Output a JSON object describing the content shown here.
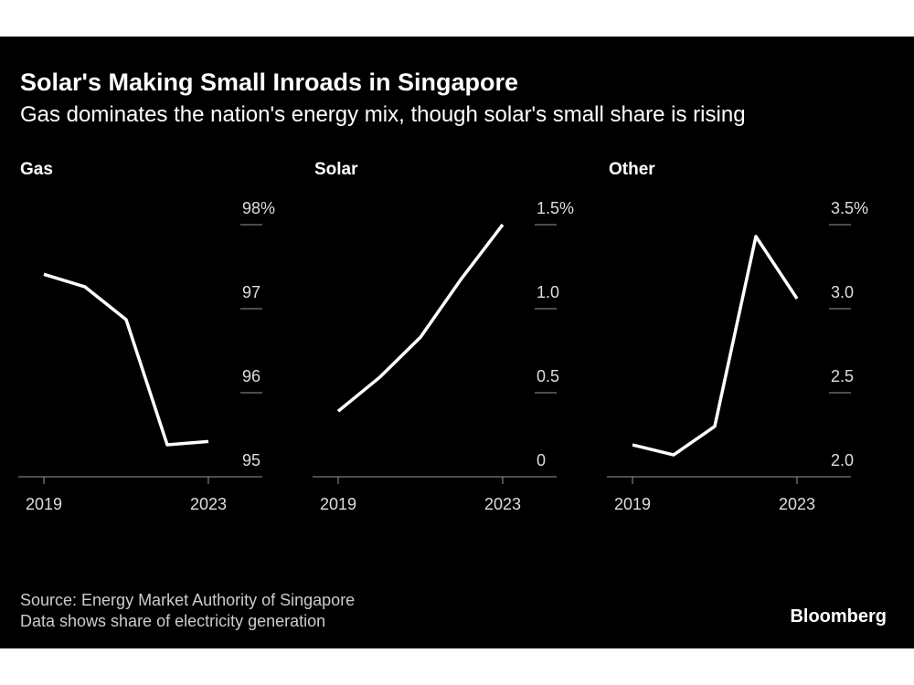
{
  "title": "Solar's Making Small Inroads in Singapore",
  "subtitle": "Gas dominates the nation's energy mix, though solar's small share is rising",
  "source": "Source: Energy Market Authority of Singapore",
  "note": "Data shows share of electricity generation",
  "brand": "Bloomberg",
  "chart_data": [
    {
      "type": "line",
      "title": "Gas",
      "x": [
        2019,
        2020,
        2021,
        2022,
        2023
      ],
      "xlim": [
        2019,
        2023
      ],
      "xticks": [
        2019,
        2023
      ],
      "series": [
        {
          "color": "#ffffff",
          "values": [
            97.41,
            97.26,
            96.87,
            95.38,
            95.42
          ]
        }
      ],
      "ylim": [
        95,
        98
      ],
      "yticks": [
        95,
        96,
        97,
        {
          "value": 98,
          "label": "98%"
        }
      ]
    },
    {
      "type": "line",
      "title": "Solar",
      "x": [
        2019,
        2020,
        2021,
        2022,
        2023
      ],
      "xlim": [
        2019,
        2023
      ],
      "xticks": [
        2019,
        2023
      ],
      "series": [
        {
          "color": "#ffffff",
          "values": [
            0.39,
            0.59,
            0.83,
            1.18,
            1.5
          ]
        }
      ],
      "ylim": [
        0,
        1.5
      ],
      "yticks": [
        0,
        0.5,
        {
          "value": 1,
          "label": "1.0"
        },
        {
          "value": 1.5,
          "label": "1.5%"
        }
      ]
    },
    {
      "type": "line",
      "title": "Other",
      "x": [
        2019,
        2020,
        2021,
        2022,
        2023
      ],
      "xlim": [
        2019,
        2023
      ],
      "xticks": [
        2019,
        2023
      ],
      "series": [
        {
          "color": "#ffffff",
          "values": [
            2.19,
            2.13,
            2.3,
            3.43,
            3.06
          ]
        }
      ],
      "ylim": [
        2,
        3.5
      ],
      "yticks": [
        {
          "value": 2,
          "label": "2.0"
        },
        2.5,
        {
          "value": 3,
          "label": "3.0"
        },
        {
          "value": 3.5,
          "label": "3.5%"
        }
      ]
    }
  ]
}
